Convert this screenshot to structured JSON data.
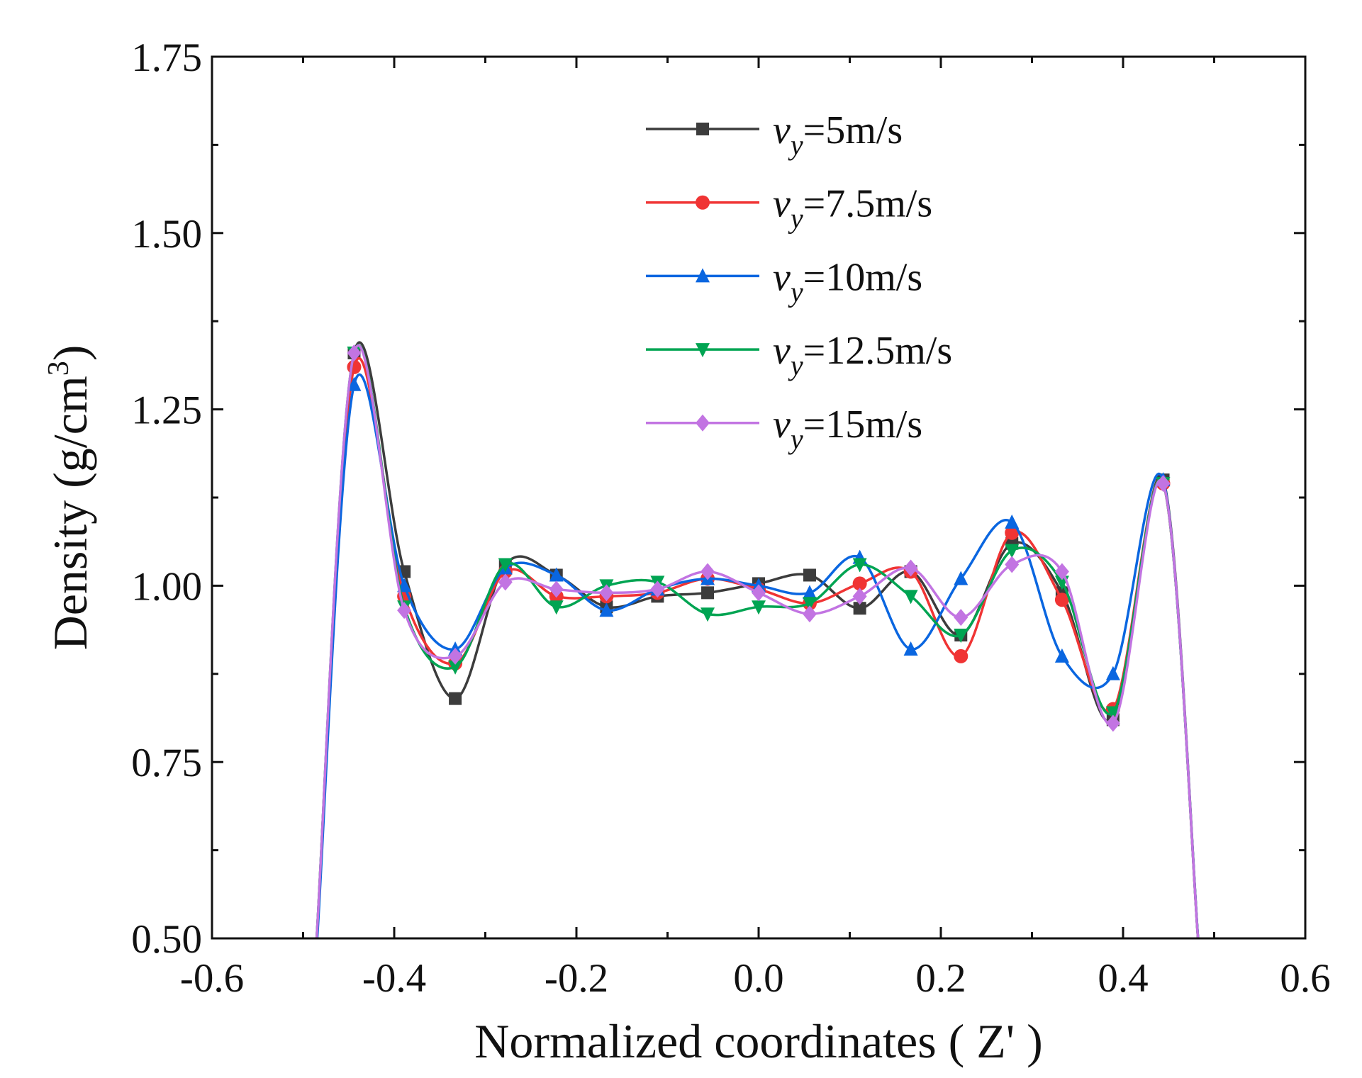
{
  "chart_data": {
    "type": "line",
    "title": "",
    "xlabel": "Normalized coordinates ( Z' )",
    "ylabel": "Density (g/cm",
    "ylabel_sup": "3",
    "ylabel_close": ")",
    "xlim": [
      -0.6,
      0.6
    ],
    "ylim": [
      0.5,
      1.75
    ],
    "xticks": [
      -0.6,
      -0.4,
      -0.2,
      0.0,
      0.2,
      0.4,
      0.6
    ],
    "xtick_labels": [
      "-0.6",
      "-0.4",
      "-0.2",
      "0.0",
      "0.2",
      "0.4",
      "0.6"
    ],
    "yticks": [
      0.5,
      0.75,
      1.0,
      1.25,
      1.5,
      1.75
    ],
    "ytick_labels": [
      "0.50",
      "0.75",
      "1.00",
      "1.25",
      "1.50",
      "1.75"
    ],
    "grid": false,
    "legend_position": "top-center",
    "x": [
      -0.5,
      -0.444,
      -0.389,
      -0.333,
      -0.278,
      -0.222,
      -0.167,
      -0.111,
      -0.056,
      0.0,
      0.056,
      0.111,
      0.167,
      0.222,
      0.278,
      0.333,
      0.389,
      0.444,
      0.5
    ],
    "series": [
      {
        "name_prefix": "v",
        "name_sub": "y",
        "name_suffix": "=5m/s",
        "color": "#3c3c3c",
        "marker": "square",
        "values": [
          0.2,
          1.33,
          1.02,
          0.84,
          1.03,
          1.015,
          0.97,
          0.985,
          0.99,
          1.003,
          1.015,
          0.968,
          1.02,
          0.93,
          1.06,
          0.99,
          0.81,
          1.15,
          0.2
        ]
      },
      {
        "name_prefix": "v",
        "name_sub": "y",
        "name_suffix": "=7.5m/s",
        "color": "#f03434",
        "marker": "circle",
        "values": [
          0.2,
          1.31,
          0.985,
          0.89,
          1.02,
          0.985,
          0.985,
          0.99,
          1.01,
          0.995,
          0.975,
          1.003,
          1.02,
          0.9,
          1.075,
          0.98,
          0.825,
          1.145,
          0.2
        ]
      },
      {
        "name_prefix": "v",
        "name_sub": "y",
        "name_suffix": "=10m/s",
        "color": "#0a66e0",
        "marker": "triangle-up",
        "values": [
          0.2,
          1.285,
          1.0,
          0.91,
          1.025,
          1.015,
          0.965,
          0.995,
          1.01,
          1.0,
          0.99,
          1.04,
          0.91,
          1.01,
          1.09,
          0.9,
          0.875,
          1.15,
          0.2
        ]
      },
      {
        "name_prefix": "v",
        "name_sub": "y",
        "name_suffix": "=12.5m/s",
        "color": "#00a452",
        "marker": "triangle-down",
        "values": [
          0.2,
          1.33,
          0.97,
          0.885,
          1.03,
          0.97,
          1.0,
          1.005,
          0.96,
          0.97,
          0.975,
          1.03,
          0.985,
          0.93,
          1.05,
          1.005,
          0.82,
          1.145,
          0.2
        ]
      },
      {
        "name_prefix": "v",
        "name_sub": "y",
        "name_suffix": "=15m/s",
        "color": "#c274e2",
        "marker": "diamond",
        "values": [
          0.2,
          1.33,
          0.965,
          0.9,
          1.005,
          0.995,
          0.99,
          0.995,
          1.02,
          0.99,
          0.96,
          0.985,
          1.025,
          0.955,
          1.03,
          1.02,
          0.805,
          1.145,
          0.2
        ]
      }
    ]
  }
}
